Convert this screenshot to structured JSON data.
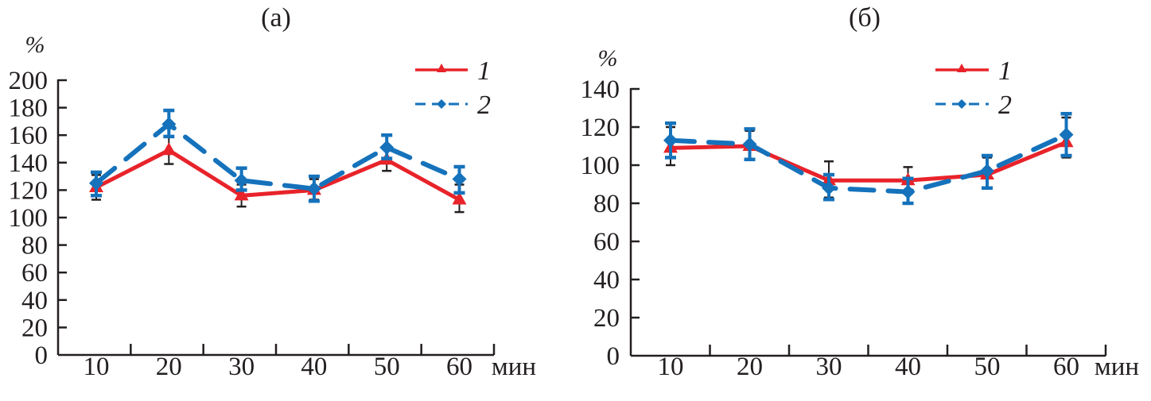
{
  "colors": {
    "series1": "#e8232a",
    "series2": "#1572bb",
    "axis": "#231f20",
    "error_series1": "#231f20"
  },
  "chart_data": [
    {
      "type": "line",
      "title": "(а)",
      "ylabel": "%",
      "xlabel": "мин",
      "categories": [
        "10",
        "20",
        "30",
        "40",
        "50",
        "60"
      ],
      "x_unit_label": "мин",
      "yticks": [
        "0",
        "20",
        "40",
        "60",
        "80",
        "100",
        "120",
        "140",
        "160",
        "180",
        "200"
      ],
      "ylim": [
        0,
        200
      ],
      "grid": false,
      "legend_position": "top-right",
      "series": [
        {
          "name": "1",
          "style": "solid",
          "marker": "triangle",
          "values": [
            122,
            149,
            116,
            120,
            142,
            113
          ],
          "err_low": [
            113,
            139,
            108,
            113,
            134,
            104
          ],
          "err_high": [
            131,
            159,
            124,
            128,
            150,
            124
          ]
        },
        {
          "name": "2",
          "style": "dashed",
          "marker": "diamond",
          "values": [
            125,
            168,
            127,
            121,
            151,
            128
          ],
          "err_low": [
            116,
            159,
            120,
            112,
            143,
            118
          ],
          "err_high": [
            133,
            178,
            136,
            130,
            160,
            137
          ]
        }
      ]
    },
    {
      "type": "line",
      "title": "(б)",
      "ylabel": "%",
      "xlabel": "мин",
      "categories": [
        "10",
        "20",
        "30",
        "40",
        "50",
        "60"
      ],
      "x_unit_label": "мин",
      "yticks": [
        "0",
        "20",
        "40",
        "60",
        "80",
        "100",
        "120",
        "140"
      ],
      "ylim": [
        0,
        140
      ],
      "grid": false,
      "legend_position": "top-right",
      "series": [
        {
          "name": "1",
          "style": "solid",
          "marker": "triangle",
          "values": [
            109,
            110,
            92,
            92,
            95,
            112
          ],
          "err_low": [
            100,
            103,
            83,
            85,
            88,
            104
          ],
          "err_high": [
            120,
            118,
            102,
            99,
            104,
            125
          ]
        },
        {
          "name": "2",
          "style": "dashed",
          "marker": "diamond",
          "values": [
            113,
            111,
            88,
            86,
            97,
            116
          ],
          "err_low": [
            104,
            103,
            82,
            80,
            88,
            105
          ],
          "err_high": [
            122,
            119,
            95,
            93,
            105,
            127
          ]
        }
      ]
    }
  ]
}
